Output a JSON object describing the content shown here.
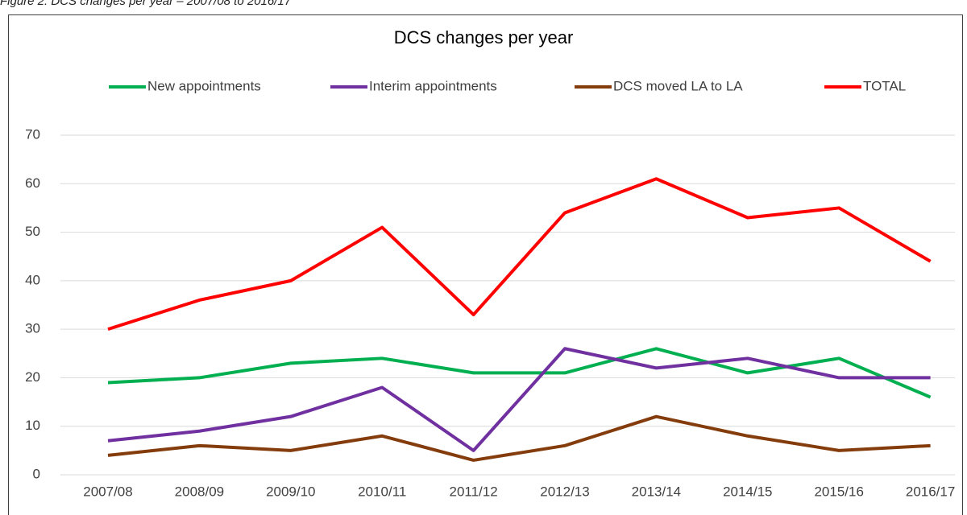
{
  "chart_data": {
    "type": "line",
    "caption": "Figure 2: DCS changes per year – 2007/08 to 2016/17",
    "title": "DCS changes per year",
    "categories": [
      "2007/08",
      "2008/09",
      "2009/10",
      "2010/11",
      "2011/12",
      "2012/13",
      "2013/14",
      "2014/15",
      "2015/16",
      "2016/17"
    ],
    "series": [
      {
        "name": "New appointments",
        "color": "#00b050",
        "values": [
          19,
          20,
          23,
          24,
          21,
          21,
          26,
          21,
          24,
          16
        ]
      },
      {
        "name": "Interim appointments",
        "color": "#7030a0",
        "values": [
          7,
          9,
          12,
          18,
          5,
          26,
          22,
          24,
          20,
          20
        ]
      },
      {
        "name": "DCS moved LA to LA",
        "color": "#843c0c",
        "values": [
          4,
          6,
          5,
          8,
          3,
          6,
          12,
          8,
          5,
          6
        ]
      },
      {
        "name": "TOTAL",
        "color": "#ff0000",
        "values": [
          30,
          36,
          40,
          51,
          33,
          54,
          61,
          53,
          55,
          44
        ]
      }
    ],
    "ylim": [
      0,
      70
    ],
    "yticks": [
      0,
      10,
      20,
      30,
      40,
      50,
      60,
      70
    ],
    "grid": true,
    "legend": "top"
  }
}
